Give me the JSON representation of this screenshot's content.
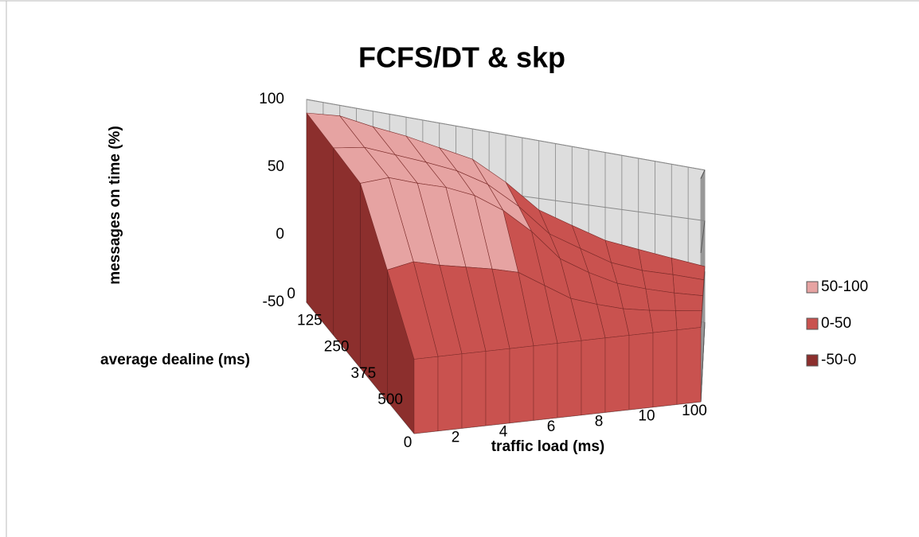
{
  "chart_data": {
    "type": "surface",
    "title": "FCFS/DT & skp",
    "z_label": "messages on time (%)",
    "x_label": "traffic load (ms)",
    "depth_label": "average dealine (ms)",
    "categories": [
      "0",
      null,
      "2",
      null,
      "4",
      null,
      "6",
      null,
      "8",
      null,
      "10",
      null,
      "100"
    ],
    "series": [
      {
        "name": "0",
        "values": [
          90,
          92,
          88,
          85,
          80,
          75,
          60,
          40,
          30,
          20,
          15,
          10,
          5
        ]
      },
      {
        "name": "125",
        "values": [
          85,
          88,
          85,
          82,
          78,
          70,
          55,
          35,
          25,
          15,
          10,
          8,
          5
        ]
      },
      {
        "name": "250",
        "values": [
          80,
          85,
          82,
          80,
          75,
          65,
          50,
          30,
          20,
          12,
          8,
          5,
          3
        ]
      },
      {
        "name": "375",
        "values": [
          40,
          45,
          42,
          40,
          38,
          35,
          25,
          15,
          10,
          6,
          4,
          3,
          2
        ]
      },
      {
        "name": "500",
        "values": [
          0,
          0,
          0,
          0,
          0,
          0,
          0,
          0,
          0,
          0,
          0,
          0,
          0
        ]
      }
    ],
    "zlim": [
      -50,
      100
    ],
    "zticks": [
      -50,
      0,
      50,
      100
    ],
    "legend": [
      {
        "name": "50-100",
        "color": "#e6a3a2"
      },
      {
        "name": "0-50",
        "color": "#c9524f"
      },
      {
        "name": "-50-0",
        "color": "#8c2f2d"
      }
    ],
    "grid": true
  }
}
